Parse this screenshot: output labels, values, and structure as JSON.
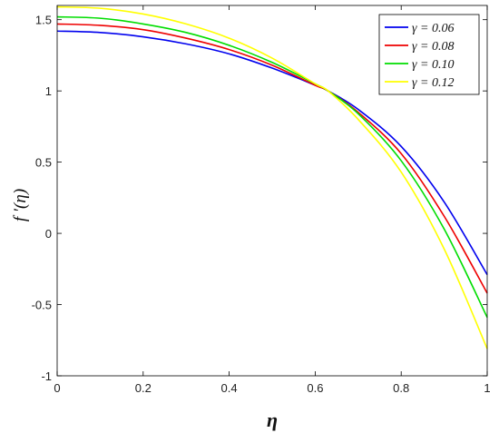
{
  "chart_data": {
    "type": "line",
    "xlabel": "η",
    "ylabel": "f ′(η)",
    "xlim": [
      0,
      1
    ],
    "ylim": [
      -1,
      1.6
    ],
    "xticks": [
      0,
      0.2,
      0.4,
      0.6,
      0.8,
      1
    ],
    "xtick_labels": [
      "0",
      "0.2",
      "0.4",
      "0.6",
      "0.8",
      "1"
    ],
    "yticks": [
      -1,
      -0.5,
      0,
      0.5,
      1,
      1.5
    ],
    "ytick_labels": [
      "-1",
      "-0.5",
      "0",
      "0.5",
      "1",
      "1.5"
    ],
    "grid": false,
    "legend_position": "top-right",
    "x": [
      0,
      0.1,
      0.2,
      0.3,
      0.4,
      0.5,
      0.6,
      0.63,
      0.7,
      0.8,
      0.9,
      1.0
    ],
    "series": [
      {
        "name": "γ = 0.06",
        "color": "#0000ee",
        "values": [
          1.42,
          1.41,
          1.38,
          1.33,
          1.26,
          1.16,
          1.04,
          1.0,
          0.87,
          0.61,
          0.22,
          -0.29
        ]
      },
      {
        "name": "γ = 0.08",
        "color": "#ee0000",
        "values": [
          1.47,
          1.46,
          1.43,
          1.37,
          1.29,
          1.18,
          1.04,
          1.0,
          0.85,
          0.56,
          0.12,
          -0.42
        ]
      },
      {
        "name": "γ = 0.10",
        "color": "#00dd00",
        "values": [
          1.52,
          1.51,
          1.47,
          1.41,
          1.32,
          1.2,
          1.05,
          1.0,
          0.84,
          0.51,
          0.03,
          -0.59
        ]
      },
      {
        "name": "γ = 0.12",
        "color": "#ffff00",
        "values": [
          1.59,
          1.58,
          1.54,
          1.47,
          1.37,
          1.23,
          1.05,
          1.0,
          0.8,
          0.43,
          -0.11,
          -0.81
        ]
      }
    ]
  }
}
